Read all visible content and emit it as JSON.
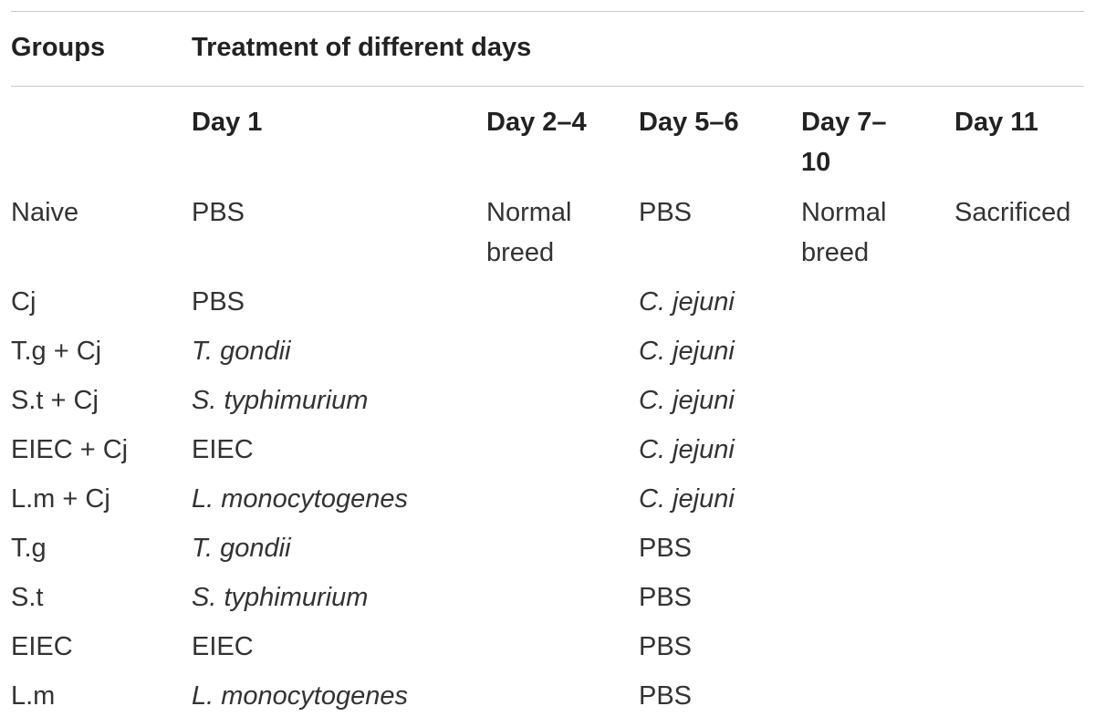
{
  "table": {
    "header": {
      "groups": "Groups",
      "treatment": "Treatment of different days"
    },
    "days": [
      "Day 1",
      "Day 2–4",
      "Day 5–6",
      "Day 7–10",
      "Day 11"
    ],
    "rows": [
      {
        "group": "Naive",
        "day1": "PBS",
        "day2_4": "Normal breed",
        "day5_6": "PBS",
        "day7_10": "Normal breed",
        "day11": "Sacrificed"
      },
      {
        "group": "Cj",
        "day1": "PBS",
        "day5_6": "C. jejuni"
      },
      {
        "group": "T.g + Cj",
        "day1": "T. gondii",
        "day5_6": "C. jejuni"
      },
      {
        "group": "S.t + Cj",
        "day1": "S. typhimurium",
        "day5_6": "C. jejuni"
      },
      {
        "group": "EIEC + Cj",
        "day1": "EIEC",
        "day5_6": "C. jejuni"
      },
      {
        "group": "L.m + Cj",
        "day1": "L. monocytogenes",
        "day5_6": "C. jejuni"
      },
      {
        "group": "T.g",
        "day1": "T. gondii",
        "day5_6": "PBS"
      },
      {
        "group": "S.t",
        "day1": "S. typhimurium",
        "day5_6": "PBS"
      },
      {
        "group": "EIEC",
        "day1": "EIEC",
        "day5_6": "PBS"
      },
      {
        "group": "L.m",
        "day1": "L. monocytogenes",
        "day5_6": "PBS"
      }
    ]
  }
}
